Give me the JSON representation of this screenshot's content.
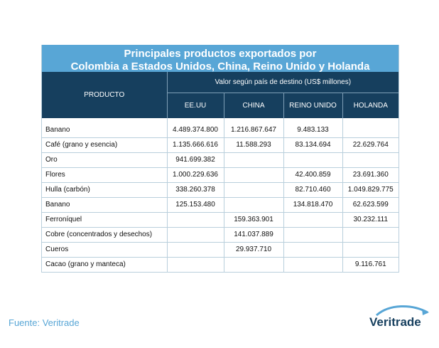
{
  "title": {
    "line1": "Principales productos exportados por",
    "line2": "Colombia a Estados Unidos, China, Reino Unido y Holanda"
  },
  "table": {
    "product_header": "PRODUCTO",
    "value_header": "Valor según país de destino (US$ millones)",
    "countries": [
      "EE.UU",
      "CHINA",
      "REINO UNIDO",
      "HOLANDA"
    ],
    "rows": [
      {
        "product": "Banano",
        "values": [
          "4.489.374.800",
          "1.216.867.647",
          "9.483.133",
          ""
        ]
      },
      {
        "product": "Café (grano y esencia)",
        "values": [
          "1.135.666.616",
          "11.588.293",
          "83.134.694",
          "22.629.764"
        ]
      },
      {
        "product": "Oro",
        "values": [
          "941.699.382",
          "",
          "",
          ""
        ]
      },
      {
        "product": "Flores",
        "values": [
          "1.000.229.636",
          "",
          "42.400.859",
          "23.691.360"
        ]
      },
      {
        "product": "Hulla (carbón)",
        "values": [
          "338.260.378",
          "",
          "82.710.460",
          "1.049.829.775"
        ]
      },
      {
        "product": "Banano",
        "values": [
          "125.153.480",
          "",
          "134.818.470",
          "62.623.599"
        ]
      },
      {
        "product": "Ferroníquel",
        "values": [
          "",
          "159.363.901",
          "",
          "30.232.111"
        ]
      },
      {
        "product": "Cobre (concentrados y desechos)",
        "values": [
          "",
          "141.037.889",
          "",
          ""
        ]
      },
      {
        "product": "Cueros",
        "values": [
          "",
          "29.937.710",
          "",
          ""
        ]
      },
      {
        "product": "Cacao (grano y manteca)",
        "values": [
          "",
          "",
          "",
          "9.116.761"
        ]
      }
    ]
  },
  "source": "Fuente: Veritrade",
  "logo": {
    "text": "Veritrade",
    "icon": "swoosh-icon"
  },
  "colors": {
    "title_bg": "#58a6d6",
    "header_bg": "#163f5e",
    "accent": "#58a6d6"
  }
}
